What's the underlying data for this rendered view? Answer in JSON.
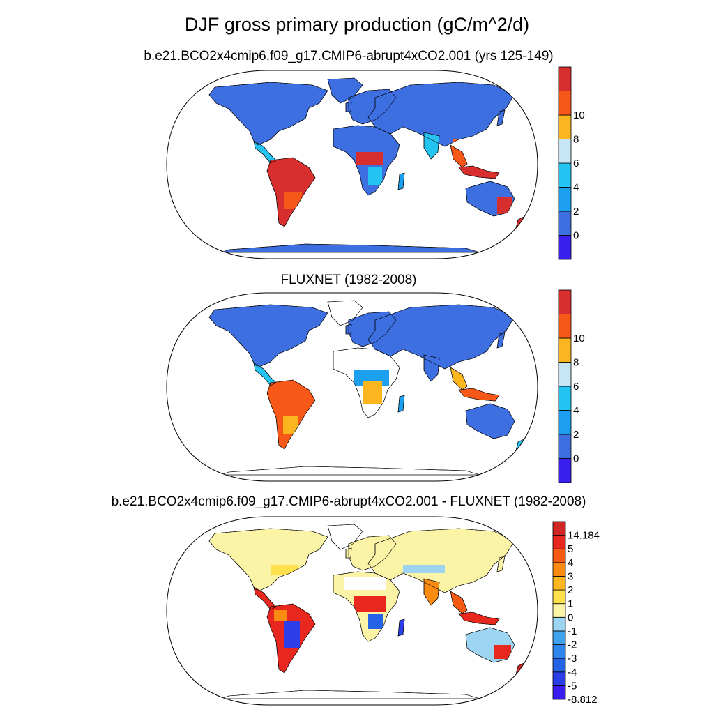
{
  "title": "DJF gross primary production (gC/m^2/d)",
  "panels": [
    {
      "id": "model",
      "title": "b.e21.BCO2x4cmip6.f09_g17.CMIP6-abrupt4xCO2.001 (yrs 125-149)",
      "colorbar": {
        "colors": [
          "#3a1ef0",
          "#3d6fe0",
          "#1c9fee",
          "#24c4f2",
          "#c6e6f5",
          "#fbb51e",
          "#f75818",
          "#d92e2e"
        ],
        "labels": [
          "0",
          "2",
          "4",
          "6",
          "8",
          "10"
        ]
      }
    },
    {
      "id": "fluxnet",
      "title": "FLUXNET (1982-2008)",
      "colorbar": {
        "colors": [
          "#3a1ef0",
          "#3d6fe0",
          "#1c9fee",
          "#24c4f2",
          "#c6e6f5",
          "#fbb51e",
          "#f75818",
          "#d92e2e"
        ],
        "labels": [
          "0",
          "2",
          "4",
          "6",
          "8",
          "10"
        ]
      }
    },
    {
      "id": "difference",
      "title": "b.e21.BCO2x4cmip6.f09_g17.CMIP6-abrupt4xCO2.001 - FLUXNET (1982-2008)",
      "colorbar": {
        "colors": [
          "#3a1ef0",
          "#2c3ee8",
          "#2563e6",
          "#2f86ea",
          "#3fa3ee",
          "#9cd4f2",
          "#fbf3a6",
          "#fde04a",
          "#fbb51e",
          "#f98b10",
          "#f55a12",
          "#e8281e",
          "#d12626"
        ],
        "labels": [
          "-8.812",
          "-5",
          "-4",
          "-3",
          "-2",
          "-1",
          "0",
          "1",
          "2",
          "3",
          "4",
          "5",
          "14.184"
        ]
      }
    }
  ]
}
